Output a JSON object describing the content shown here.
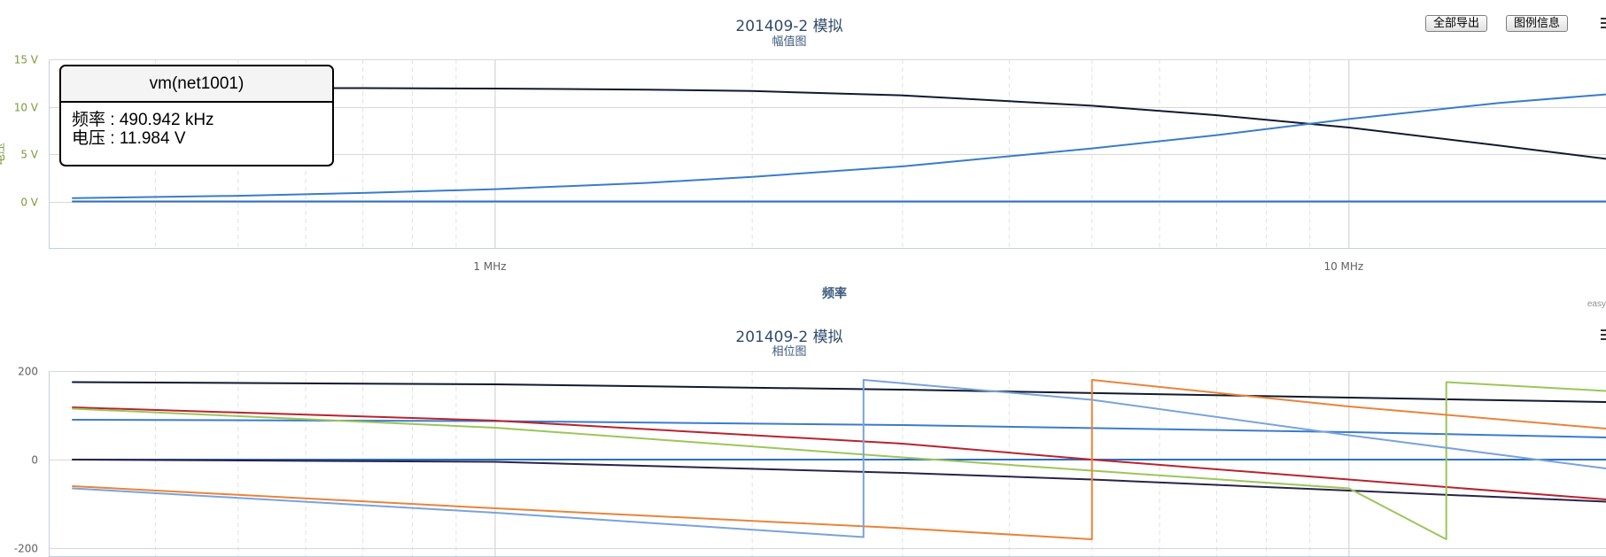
{
  "toolbar": {
    "export_all_label": "全部导出",
    "legend_info_label": "图例信息"
  },
  "tooltip": {
    "series": "vm(net1001)",
    "freq_label": "频率",
    "freq_value": "490.942 kHz",
    "volt_label": "电压",
    "volt_value": "11.984 V"
  },
  "credit": "easy",
  "chart_data": [
    {
      "type": "line",
      "title": "201409-2 模拟",
      "subtitle": "幅值图",
      "xlabel": "频率",
      "ylabel": "电压",
      "x_scale": "log",
      "xlim": [
        300000,
        20000000
      ],
      "ylim": [
        -5,
        15
      ],
      "x_ticks": [
        {
          "value": 1000000,
          "label": "1 MHz"
        },
        {
          "value": 10000000,
          "label": "10 MHz"
        }
      ],
      "y_ticks": [
        {
          "value": 15,
          "label": "15 V"
        },
        {
          "value": 10,
          "label": "10 V"
        },
        {
          "value": 5,
          "label": "5 V"
        },
        {
          "value": 0,
          "label": "0 V"
        }
      ],
      "colors": {
        "axis_label": "#7a9a3a",
        "grid": "#d8d8d8"
      },
      "series": [
        {
          "color": "#101a2e",
          "x": [
            490942,
            700000,
            1000000,
            1500000,
            2000000,
            3000000,
            5000000,
            7000000,
            10000000,
            15000000,
            20000000
          ],
          "y": [
            11.984,
            11.96,
            11.92,
            11.8,
            11.65,
            11.2,
            10.1,
            9.1,
            7.8,
            5.9,
            4.5
          ]
        },
        {
          "color": "#3a7cc8",
          "x": [
            320000,
            500000,
            700000,
            1000000,
            1500000,
            2000000,
            3000000,
            5000000,
            7000000,
            10000000,
            15000000,
            20000000
          ],
          "y": [
            0.35,
            0.6,
            0.9,
            1.3,
            1.95,
            2.6,
            3.7,
            5.6,
            7.0,
            8.7,
            10.4,
            11.3
          ]
        },
        {
          "color": "#2d6fbf",
          "x": [
            320000,
            20000000
          ],
          "y": [
            0,
            0
          ]
        }
      ]
    },
    {
      "type": "line",
      "title": "201409-2 模拟",
      "subtitle": "相位图",
      "x_scale": "log",
      "xlim": [
        300000,
        20000000
      ],
      "ylim": [
        -220,
        200
      ],
      "y_ticks": [
        {
          "value": 200,
          "label": "200"
        },
        {
          "value": 0,
          "label": "0"
        },
        {
          "value": -200,
          "label": "-200"
        }
      ],
      "series": [
        {
          "color": "#101a2e",
          "x": [
            320000,
            1000000,
            3000000,
            10000000,
            20000000
          ],
          "y": [
            175,
            170,
            158,
            140,
            130
          ]
        },
        {
          "color": "#3a7cc8",
          "x": [
            320000,
            1000000,
            3000000,
            10000000,
            20000000
          ],
          "y": [
            90,
            87,
            78,
            62,
            50
          ]
        },
        {
          "color": "#2d6fbf",
          "x": [
            320000,
            20000000
          ],
          "y": [
            0,
            0
          ]
        },
        {
          "color": "#b8232e",
          "x": [
            320000,
            1000000,
            3000000,
            5000000,
            10000000,
            20000000
          ],
          "y": [
            118,
            88,
            36,
            0,
            -45,
            -90
          ]
        },
        {
          "color": "#2a2346",
          "x": [
            320000,
            1000000,
            3000000,
            5000000,
            10000000,
            20000000
          ],
          "y": [
            0,
            -5,
            -30,
            -45,
            -70,
            -95
          ]
        },
        {
          "color": "#9cc55a",
          "x": [
            320000,
            1000000,
            3000000,
            5000000,
            10000000,
            13000000,
            13000001,
            20000000
          ],
          "y": [
            115,
            72,
            5,
            -25,
            -65,
            -180,
            175,
            155
          ]
        },
        {
          "color": "#e8843a",
          "x": [
            320000,
            1000000,
            3000000,
            5000000,
            5000001,
            10000000,
            20000000
          ],
          "y": [
            -60,
            -110,
            -155,
            -180,
            180,
            120,
            70
          ]
        },
        {
          "color": "#7aa2dc",
          "x": [
            320000,
            1000000,
            2700000,
            2700001,
            5000000,
            10000000,
            20000000
          ],
          "y": [
            -65,
            -120,
            -175,
            180,
            135,
            55,
            -20
          ]
        }
      ]
    }
  ]
}
